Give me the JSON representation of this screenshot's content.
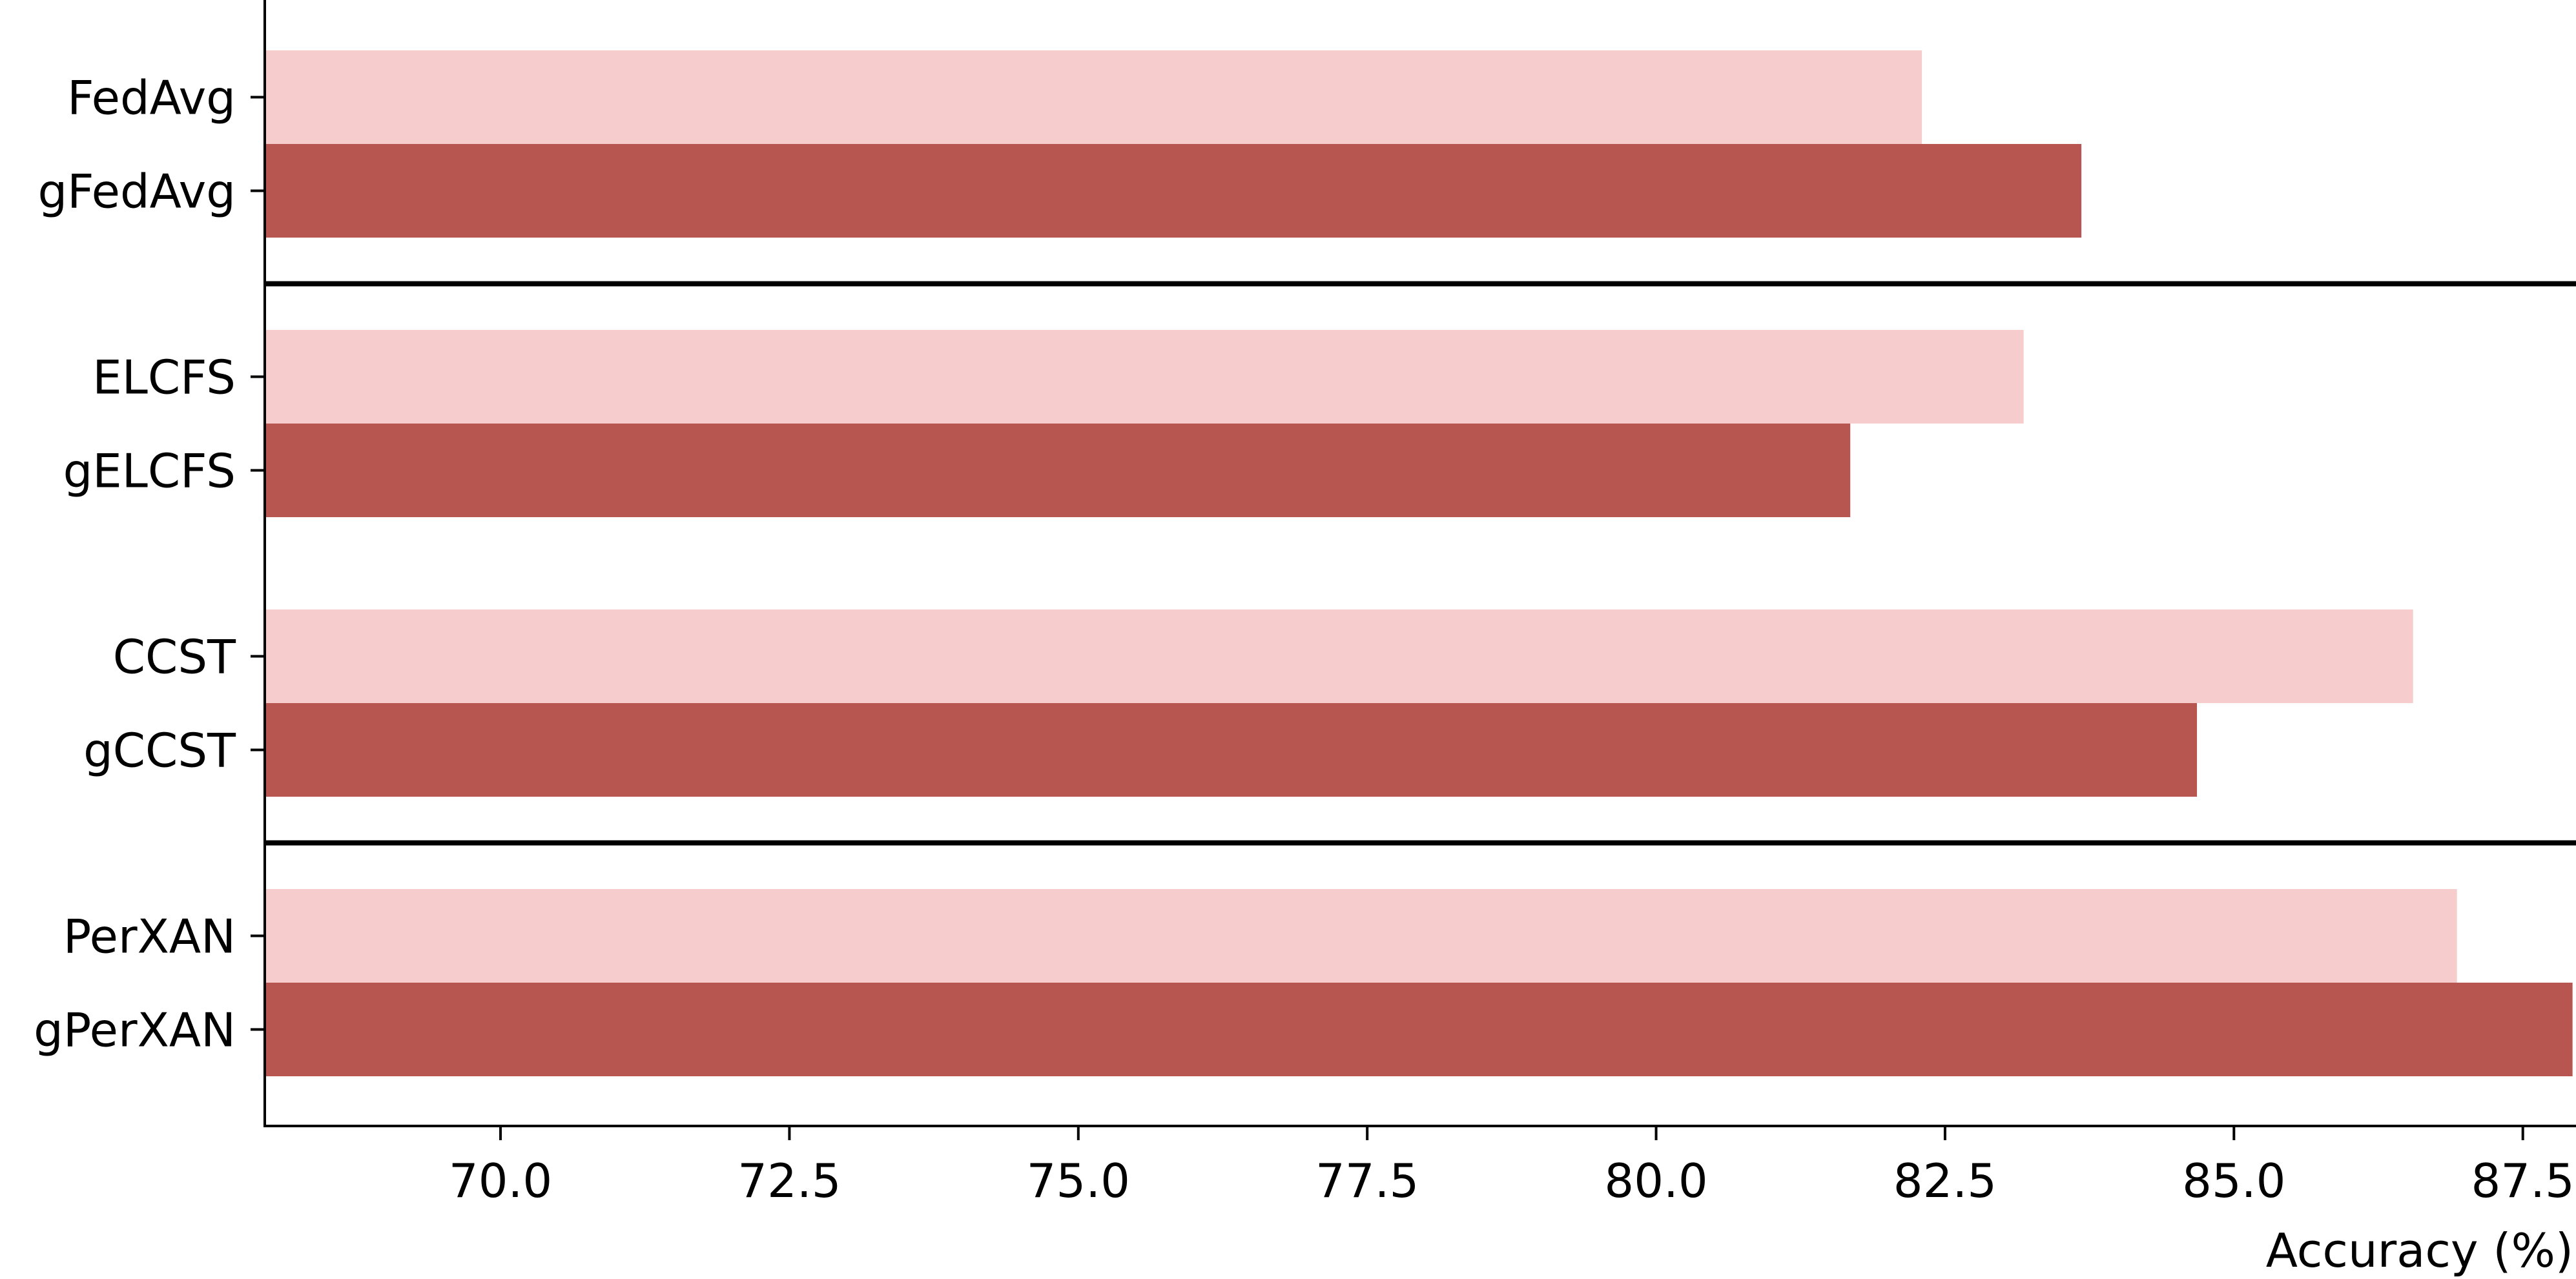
{
  "chart_data": {
    "type": "bar",
    "orientation": "horizontal",
    "xlabel": "Accuracy (%)",
    "ylabel": "",
    "title": "",
    "xlim": [
      67.96,
      87.96
    ],
    "xticks": [
      70.0,
      72.5,
      75.0,
      77.5,
      80.0,
      82.5,
      85.0,
      87.5
    ],
    "xtick_labels": [
      "70.0",
      "72.5",
      "75.0",
      "77.5",
      "80.0",
      "82.5",
      "85.0",
      "87.5"
    ],
    "grid": false,
    "categories": [
      "FedAvg",
      "gFedAvg",
      "ELCFS",
      "gELCFS",
      "CCST",
      "gCCST",
      "PerXAN",
      "gPerXAN"
    ],
    "values": [
      82.3,
      83.68,
      83.18,
      81.68,
      86.55,
      84.68,
      86.93,
      87.93
    ],
    "bar_colors": [
      "#f6cdcc",
      "#b75550",
      "#f6cdcc",
      "#b75550",
      "#f6cdcc",
      "#b75550",
      "#f6cdcc",
      "#b75550"
    ],
    "group_separators_after": [
      "gFedAvg",
      "gCCST"
    ]
  }
}
